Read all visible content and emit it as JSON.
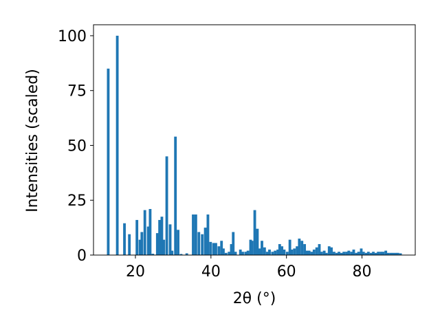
{
  "chart_data": {
    "type": "bar",
    "title": "",
    "xlabel": "2θ (°)",
    "ylabel": "Intensities (scaled)",
    "xlim": [
      8.9,
      94.1
    ],
    "ylim": [
      0,
      105
    ],
    "xticks": [
      20,
      40,
      60,
      80
    ],
    "yticks": [
      0,
      25,
      50,
      75,
      100
    ],
    "bar_color": "#1f77b4",
    "bar_width_deg": 0.7,
    "grid": false,
    "legend": "none",
    "x": [
      12.8,
      15.2,
      17.1,
      18.4,
      20.4,
      21.2,
      21.7,
      22.5,
      23.4,
      23.9,
      24.6,
      25.8,
      26.4,
      27.0,
      27.5,
      28.3,
      29.2,
      29.7,
      30.6,
      31.3,
      32.1,
      33.6,
      35.3,
      36.0,
      36.8,
      37.7,
      38.5,
      39.2,
      39.9,
      40.7,
      41.3,
      42.1,
      42.8,
      43.3,
      44.0,
      44.8,
      45.4,
      45.9,
      46.5,
      47.8,
      48.4,
      49.2,
      49.8,
      50.5,
      50.9,
      51.6,
      52.3,
      52.9,
      53.5,
      54.2,
      54.9,
      55.5,
      56.3,
      57.0,
      57.7,
      58.2,
      58.8,
      59.4,
      60.2,
      60.9,
      61.4,
      62.1,
      62.8,
      63.4,
      64.1,
      64.8,
      65.4,
      66.0,
      66.7,
      67.3,
      68.0,
      68.7,
      69.3,
      70.0,
      70.6,
      71.3,
      71.9,
      72.6,
      73.3,
      73.9,
      74.6,
      75.2,
      75.9,
      76.5,
      77.2,
      77.8,
      78.5,
      79.1,
      79.8,
      80.4,
      81.1,
      81.7,
      82.4,
      83.0,
      83.7,
      84.3,
      85.0,
      85.6,
      86.3,
      86.9,
      87.6,
      88.2,
      88.9,
      89.5,
      90.2
    ],
    "values": [
      85,
      100,
      14.5,
      9.5,
      16,
      7,
      10.5,
      20.5,
      13,
      21,
      0.6,
      10,
      16,
      17.5,
      7,
      45,
      14,
      2,
      54,
      11.5,
      0.5,
      0.8,
      18.5,
      18.5,
      10.5,
      9.5,
      12.5,
      18.5,
      6,
      5.5,
      5.5,
      4,
      6.5,
      3,
      1,
      1.5,
      5,
      10.5,
      1.5,
      2.5,
      1.5,
      1.5,
      2,
      7,
      6.5,
      20.5,
      12,
      3,
      6.5,
      3.5,
      1.5,
      2.5,
      1.5,
      2,
      2.5,
      5,
      4,
      2.5,
      1.5,
      7,
      2.5,
      3,
      4,
      7.5,
      6.5,
      5,
      2,
      2,
      1.5,
      2.5,
      3.5,
      5,
      1.5,
      2,
      1,
      4,
      3.5,
      1.5,
      1,
      1.5,
      1,
      1.5,
      1.5,
      2,
      1.5,
      2.5,
      1,
      1.5,
      3,
      1.5,
      1,
      1.5,
      1,
      1.5,
      1,
      1.5,
      1.5,
      1.5,
      2,
      1,
      1,
      1,
      1,
      1,
      0.8
    ]
  }
}
